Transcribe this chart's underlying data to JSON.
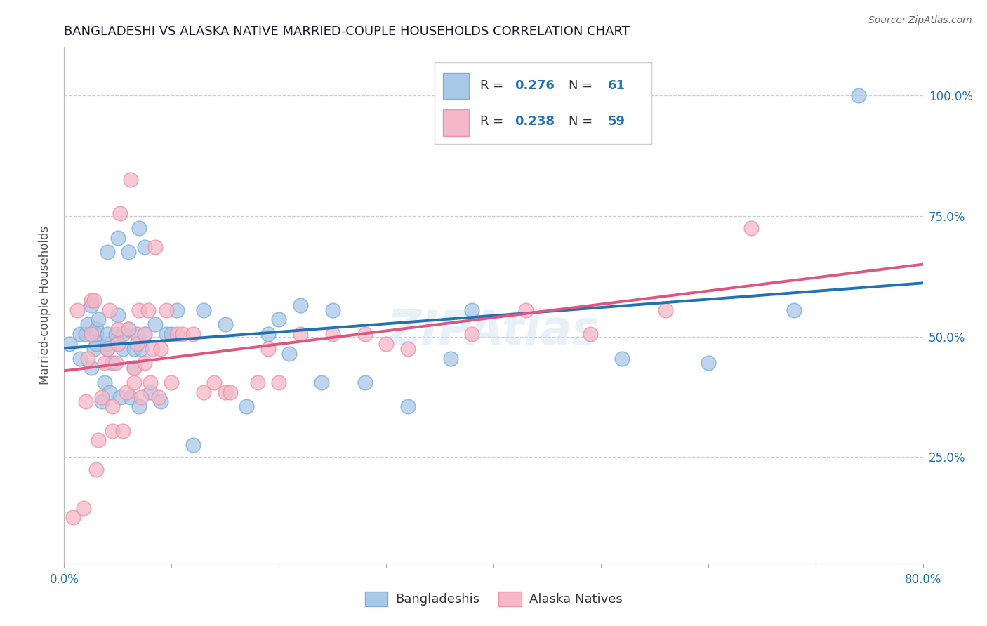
{
  "title": "BANGLADESHI VS ALASKA NATIVE MARRIED-COUPLE HOUSEHOLDS CORRELATION CHART",
  "source": "Source: ZipAtlas.com",
  "ylabel_label": "Married-couple Households",
  "xlim": [
    0.0,
    0.8
  ],
  "ylim": [
    0.03,
    1.1
  ],
  "blue_color": "#a8c8e8",
  "pink_color": "#f4b8c8",
  "blue_edge_color": "#7aafdc",
  "pink_edge_color": "#f090aa",
  "blue_line_color": "#2171b5",
  "pink_line_color": "#e05580",
  "blue_text_color": "#2171b5",
  "R_blue": 0.276,
  "N_blue": 61,
  "R_pink": 0.238,
  "N_pink": 59,
  "legend_labels": [
    "Bangladeshis",
    "Alaska Natives"
  ],
  "watermark": "ZIPAtlas",
  "bangladeshi_x": [
    0.005,
    0.015,
    0.015,
    0.02,
    0.022,
    0.025,
    0.025,
    0.028,
    0.03,
    0.03,
    0.03,
    0.032,
    0.035,
    0.038,
    0.04,
    0.04,
    0.04,
    0.04,
    0.042,
    0.045,
    0.048,
    0.05,
    0.05,
    0.052,
    0.055,
    0.055,
    0.06,
    0.06,
    0.062,
    0.065,
    0.065,
    0.068,
    0.07,
    0.07,
    0.072,
    0.075,
    0.075,
    0.08,
    0.085,
    0.09,
    0.095,
    0.1,
    0.105,
    0.12,
    0.13,
    0.15,
    0.17,
    0.19,
    0.2,
    0.21,
    0.22,
    0.24,
    0.25,
    0.28,
    0.32,
    0.36,
    0.38,
    0.52,
    0.6,
    0.68,
    0.74
  ],
  "bangladeshi_y": [
    0.485,
    0.455,
    0.505,
    0.505,
    0.525,
    0.565,
    0.435,
    0.475,
    0.485,
    0.505,
    0.515,
    0.535,
    0.365,
    0.405,
    0.475,
    0.485,
    0.505,
    0.675,
    0.385,
    0.445,
    0.505,
    0.545,
    0.705,
    0.375,
    0.475,
    0.505,
    0.515,
    0.675,
    0.375,
    0.435,
    0.475,
    0.505,
    0.725,
    0.355,
    0.475,
    0.505,
    0.685,
    0.385,
    0.525,
    0.365,
    0.505,
    0.505,
    0.555,
    0.275,
    0.555,
    0.525,
    0.355,
    0.505,
    0.535,
    0.465,
    0.565,
    0.405,
    0.555,
    0.405,
    0.355,
    0.455,
    0.555,
    0.455,
    0.445,
    0.555,
    1.0
  ],
  "alaska_x": [
    0.008,
    0.012,
    0.018,
    0.02,
    0.022,
    0.025,
    0.025,
    0.028,
    0.03,
    0.032,
    0.035,
    0.038,
    0.04,
    0.042,
    0.045,
    0.045,
    0.048,
    0.05,
    0.05,
    0.052,
    0.055,
    0.058,
    0.06,
    0.062,
    0.065,
    0.065,
    0.068,
    0.07,
    0.072,
    0.075,
    0.075,
    0.078,
    0.08,
    0.082,
    0.085,
    0.088,
    0.09,
    0.095,
    0.1,
    0.105,
    0.11,
    0.12,
    0.13,
    0.14,
    0.15,
    0.155,
    0.18,
    0.19,
    0.2,
    0.22,
    0.25,
    0.28,
    0.3,
    0.32,
    0.38,
    0.43,
    0.49,
    0.56,
    0.64
  ],
  "alaska_y": [
    0.125,
    0.555,
    0.145,
    0.365,
    0.455,
    0.505,
    0.575,
    0.575,
    0.225,
    0.285,
    0.375,
    0.445,
    0.475,
    0.555,
    0.305,
    0.355,
    0.445,
    0.485,
    0.515,
    0.755,
    0.305,
    0.385,
    0.515,
    0.825,
    0.405,
    0.435,
    0.485,
    0.555,
    0.375,
    0.445,
    0.505,
    0.555,
    0.405,
    0.475,
    0.685,
    0.375,
    0.475,
    0.555,
    0.405,
    0.505,
    0.505,
    0.505,
    0.385,
    0.405,
    0.385,
    0.385,
    0.405,
    0.475,
    0.405,
    0.505,
    0.505,
    0.505,
    0.485,
    0.475,
    0.505,
    0.555,
    0.505,
    0.555,
    0.725
  ],
  "grid_color": "#cccccc",
  "background_color": "#ffffff",
  "title_color": "#1a1a2e",
  "source_color": "#666666",
  "tick_color": "#555555",
  "legend_box_color": "#f5f5f5",
  "legend_box_edge_color": "#cccccc",
  "x_tick_positions": [
    0.0,
    0.1,
    0.2,
    0.3,
    0.4,
    0.5,
    0.6,
    0.7,
    0.8
  ],
  "x_tick_labels": [
    "0.0%",
    "",
    "",
    "",
    "",
    "",
    "",
    "",
    "80.0%"
  ],
  "y_tick_positions": [
    0.25,
    0.5,
    0.75,
    1.0
  ],
  "y_tick_labels": [
    "25.0%",
    "50.0%",
    "75.0%",
    "100.0%"
  ]
}
